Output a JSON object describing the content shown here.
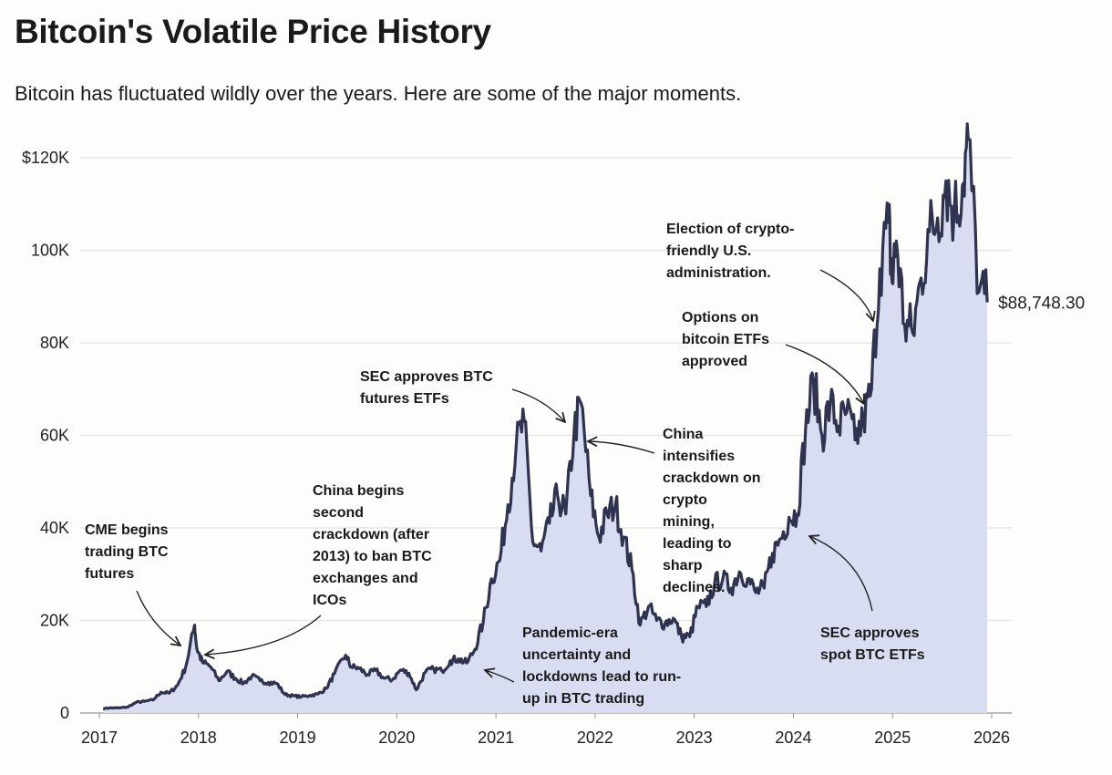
{
  "title": "Bitcoin's Volatile Price History",
  "subtitle": "Bitcoin has fluctuated wildly over the years. Here are some of the major moments.",
  "colors": {
    "line": "#2f3350",
    "area": "#d9ddf1",
    "grid": "#e6e6e6"
  },
  "chart_data": {
    "type": "area",
    "title": "Bitcoin's Volatile Price History",
    "xlabel": "",
    "ylabel": "",
    "xlim": [
      2017,
      2026
    ],
    "ylim": [
      0,
      120000
    ],
    "grid": true,
    "x_ticks": [
      "2017",
      "2018",
      "2019",
      "2020",
      "2021",
      "2022",
      "2023",
      "2024",
      "2025",
      "2026"
    ],
    "y_ticks": [
      {
        "value": 0,
        "label": "0"
      },
      {
        "value": 20000,
        "label": "20K"
      },
      {
        "value": 40000,
        "label": "40K"
      },
      {
        "value": 60000,
        "label": "60K"
      },
      {
        "value": 80000,
        "label": "80K"
      },
      {
        "value": 100000,
        "label": "100K"
      },
      {
        "value": 120000,
        "label": "$120K"
      }
    ],
    "end_label": "$88,748.30",
    "series": [
      {
        "x": [
          "2017-01",
          "2017-02",
          "2017-03",
          "2017-04",
          "2017-05",
          "2017-06",
          "2017-07",
          "2017-08",
          "2017-09",
          "2017-10",
          "2017-11",
          "2017-12-17",
          "2017-12-25",
          "2018-01",
          "2018-02",
          "2018-03",
          "2018-04",
          "2018-05",
          "2018-06",
          "2018-07",
          "2018-08",
          "2018-09",
          "2018-10",
          "2018-11",
          "2018-12",
          "2019-01",
          "2019-02",
          "2019-03",
          "2019-04",
          "2019-05",
          "2019-06-26",
          "2019-07",
          "2019-08",
          "2019-09",
          "2019-10",
          "2019-11",
          "2019-12",
          "2020-01",
          "2020-02",
          "2020-03-12",
          "2020-04",
          "2020-05",
          "2020-06",
          "2020-07",
          "2020-08",
          "2020-09",
          "2020-10",
          "2020-11",
          "2020-12",
          "2021-01",
          "2021-02",
          "2021-03",
          "2021-04-14",
          "2021-05",
          "2021-06",
          "2021-07",
          "2021-08",
          "2021-09",
          "2021-10",
          "2021-11-10",
          "2021-12",
          "2022-01",
          "2022-02",
          "2022-03",
          "2022-04",
          "2022-05",
          "2022-06",
          "2022-07",
          "2022-08",
          "2022-09",
          "2022-10",
          "2022-11",
          "2022-12",
          "2023-01",
          "2023-02",
          "2023-03",
          "2023-04",
          "2023-05",
          "2023-06",
          "2023-07",
          "2023-08",
          "2023-09",
          "2023-10",
          "2023-11",
          "2023-12",
          "2024-01",
          "2024-02",
          "2024-03-14",
          "2024-04",
          "2024-05",
          "2024-06",
          "2024-07",
          "2024-08",
          "2024-09",
          "2024-10",
          "2024-11",
          "2024-12-17",
          "2024-12-30",
          "2025-01",
          "2025-02",
          "2025-03",
          "2025-04",
          "2025-05",
          "2025-06",
          "2025-07",
          "2025-08",
          "2025-09",
          "2025-10-06",
          "2025-11",
          "2025-12"
        ],
        "y": [
          1000,
          1100,
          1100,
          1300,
          2300,
          2500,
          2800,
          4500,
          4300,
          6000,
          10000,
          19000,
          14000,
          11000,
          10000,
          7000,
          9000,
          7500,
          6400,
          8000,
          7000,
          6600,
          6400,
          4000,
          3700,
          3500,
          3800,
          4100,
          5300,
          8500,
          12500,
          10000,
          9600,
          8300,
          9200,
          7500,
          7200,
          9300,
          8600,
          5000,
          8800,
          9500,
          9100,
          11300,
          11700,
          10800,
          13800,
          19700,
          29000,
          33000,
          45000,
          58000,
          63000,
          37000,
          35000,
          41000,
          47000,
          43000,
          61000,
          67000,
          47000,
          38000,
          43000,
          45000,
          38000,
          31000,
          19000,
          23000,
          20000,
          19400,
          20500,
          16500,
          16500,
          23000,
          23000,
          28000,
          29000,
          27000,
          30500,
          29000,
          26000,
          27000,
          34500,
          37700,
          42300,
          43000,
          61000,
          72000,
          60000,
          67000,
          62000,
          65000,
          59000,
          63000,
          70000,
          96000,
          106000,
          93000,
          102000,
          84000,
          82000,
          94000,
          104000,
          107000,
          115000,
          108000,
          114000,
          124000,
          91000,
          88748.3
        ]
      }
    ],
    "annotations": [
      {
        "id": "cme",
        "text": "CME begins\ntrading BTC\nfutures"
      },
      {
        "id": "china2",
        "text": "China begins\nsecond\ncrackdown (after\n2013) to ban BTC\nexchanges and\nICOs"
      },
      {
        "id": "secfut",
        "text": "SEC approves BTC\nfutures ETFs"
      },
      {
        "id": "chinamining",
        "text": "China\nintensifies\ncrackdown on\ncrypto\nmining,\nleading to\nsharp\ndeclines."
      },
      {
        "id": "pandemic",
        "text": "Pandemic-era\nuncertainty and\nlockdowns lead to run-\nup in BTC trading"
      },
      {
        "id": "secspot",
        "text": "SEC approves\nspot BTC ETFs"
      },
      {
        "id": "options",
        "text": "Options on\nbitcoin ETFs\napproved"
      },
      {
        "id": "election",
        "text": "Election of crypto-\nfriendly U.S.\nadministration."
      }
    ]
  }
}
